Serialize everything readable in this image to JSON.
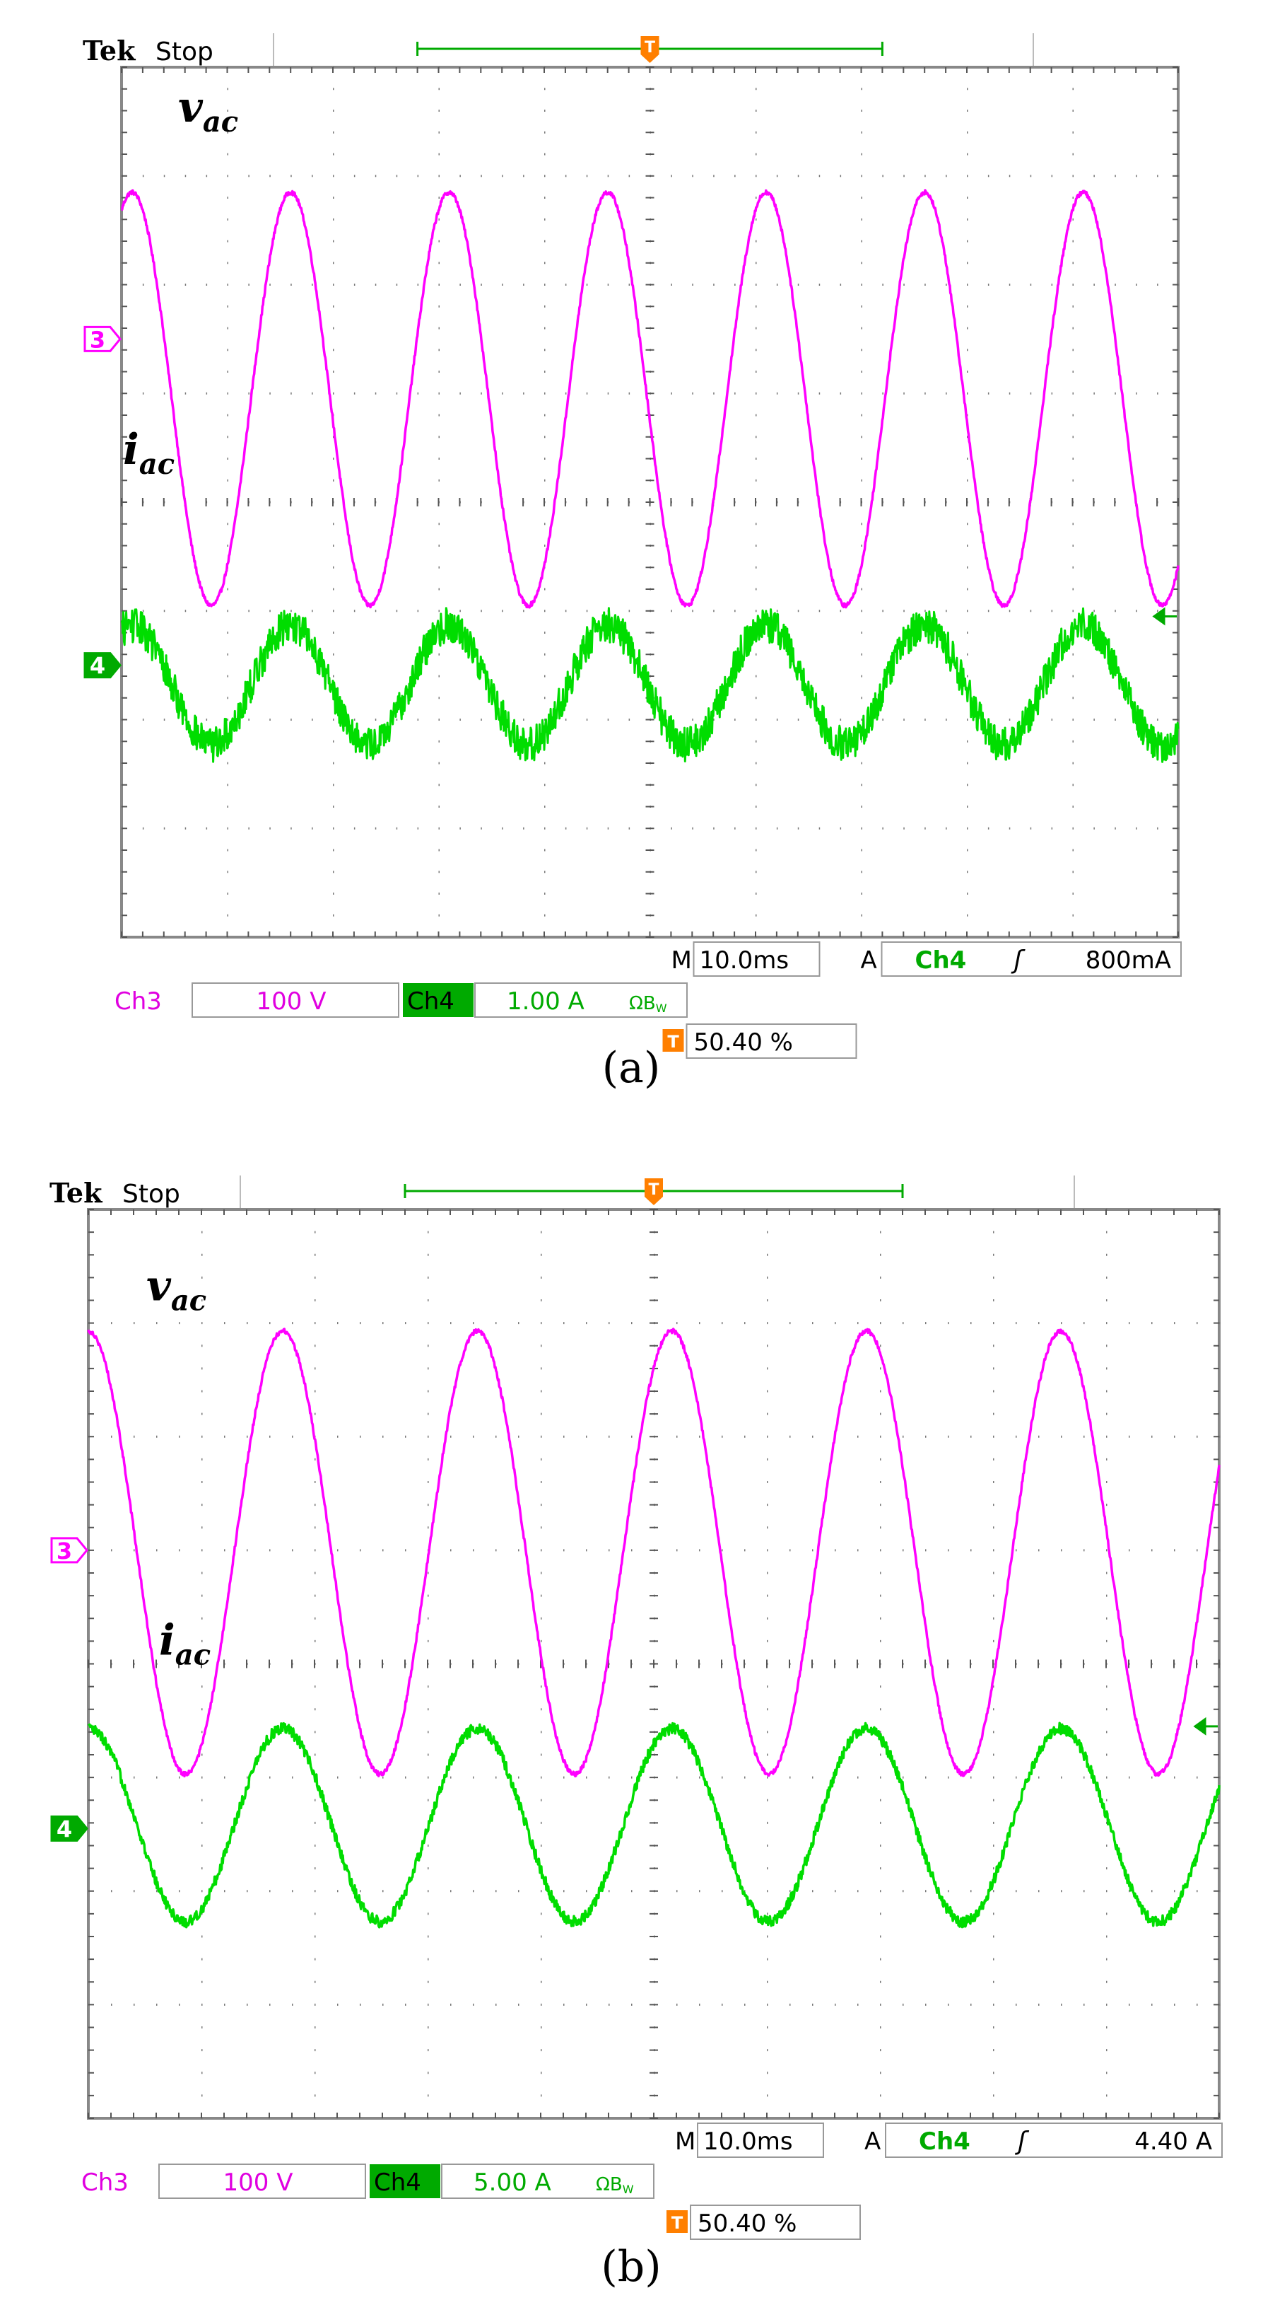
{
  "chart_data": [
    {
      "type": "line",
      "panel_label": "(a)",
      "brand": "Tek",
      "status": "Stop",
      "grid": true,
      "divisions": {
        "x": 10,
        "y": 8
      },
      "series": [
        {
          "name": "v",
          "subscript": "ac",
          "channel": 3,
          "color": "#ff00ff",
          "amplitude_div": 1.9,
          "offset_div": 0.95,
          "period_div": 1.5,
          "peak_at_div": 0.1,
          "noise_div": 0.02
        },
        {
          "name": "i",
          "subscript": "ac",
          "channel": 4,
          "color": "#00dd00",
          "amplitude_div": 0.55,
          "offset_div": -1.68,
          "period_div": 1.5,
          "peak_at_div": 0.1,
          "noise_div": 0.16
        }
      ],
      "channel_markers": [
        {
          "channel": 3,
          "label": "3",
          "level_div": 1.5,
          "color": "#ff00ff",
          "filled": false
        },
        {
          "channel": 4,
          "label": "4",
          "level_div": -1.5,
          "color": "#00aa00",
          "filled": true
        }
      ],
      "trigger_level_div": -1.05,
      "trigger_position_pct": 50.4,
      "readouts": {
        "timebase_prefix": "M",
        "timebase": "10.0ms",
        "trigger_mode": "A",
        "trigger_source": "Ch4",
        "trigger_slope": "ʃ",
        "trigger_level": "800mA",
        "ch3_label": "Ch3",
        "ch3_scale": "100 V",
        "ch4_label": "Ch4",
        "ch4_scale": "1.00 A",
        "ch4_suffix": "ΩB",
        "ch4_suffix_sub": "W",
        "trigger_pos_icon": "T",
        "trigger_pos": "50.40 %"
      }
    },
    {
      "type": "line",
      "panel_label": "(b)",
      "brand": "Tek",
      "status": "Stop",
      "grid": true,
      "divisions": {
        "x": 10,
        "y": 8
      },
      "series": [
        {
          "name": "v",
          "subscript": "ac",
          "channel": 3,
          "color": "#ff00ff",
          "amplitude_div": 1.95,
          "offset_div": 0.98,
          "period_div": 1.72,
          "peak_at_div": 0.0,
          "noise_div": 0.02
        },
        {
          "name": "i",
          "subscript": "ac",
          "channel": 4,
          "color": "#00dd00",
          "amplitude_div": 0.85,
          "offset_div": -1.42,
          "period_div": 1.72,
          "peak_at_div": 0.0,
          "noise_div": 0.05
        }
      ],
      "channel_markers": [
        {
          "channel": 3,
          "label": "3",
          "level_div": 1.0,
          "color": "#ff00ff",
          "filled": false
        },
        {
          "channel": 4,
          "label": "4",
          "level_div": -1.45,
          "color": "#00aa00",
          "filled": true
        }
      ],
      "trigger_level_div": -0.55,
      "trigger_position_pct": 50.4,
      "readouts": {
        "timebase_prefix": "M",
        "timebase": "10.0ms",
        "trigger_mode": "A",
        "trigger_source": "Ch4",
        "trigger_slope": "ʃ",
        "trigger_level": "4.40 A",
        "ch3_label": "Ch3",
        "ch3_scale": "100 V",
        "ch4_label": "Ch4",
        "ch4_scale": "5.00 A",
        "ch4_suffix": "ΩB",
        "ch4_suffix_sub": "W",
        "trigger_pos_icon": "T",
        "trigger_pos": "50.40 %"
      }
    }
  ]
}
